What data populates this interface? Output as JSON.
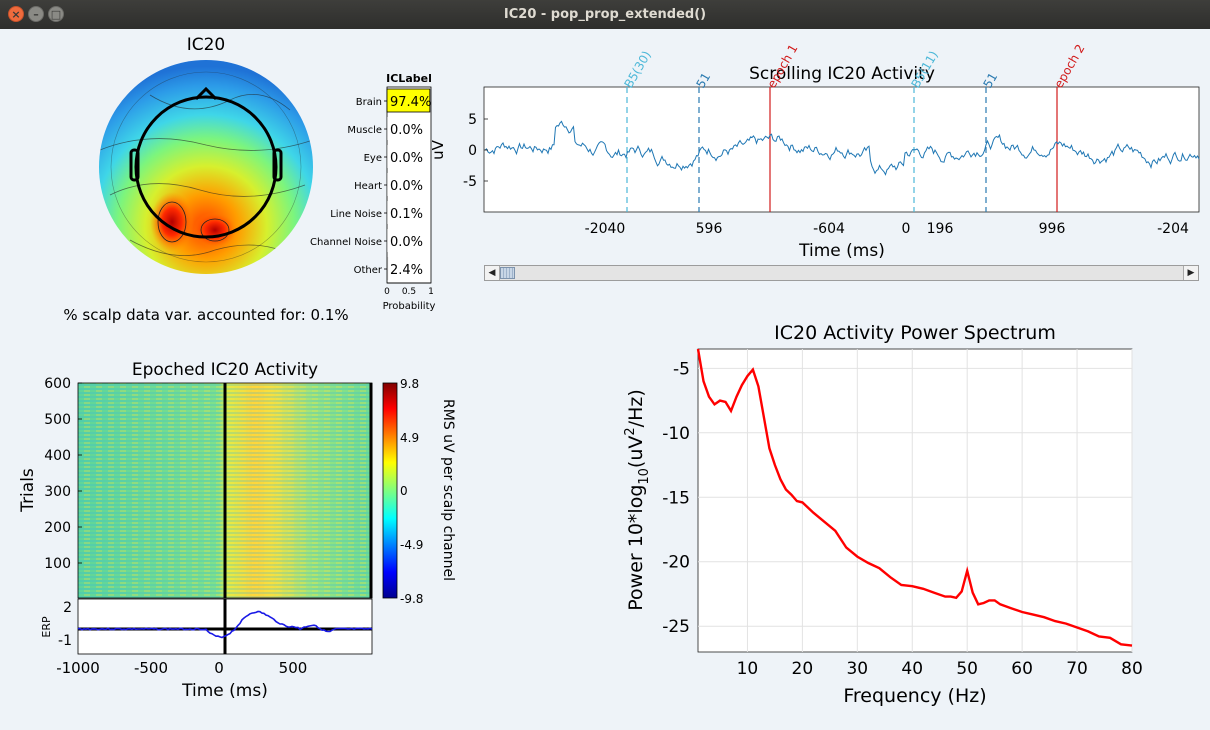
{
  "window": {
    "title": "IC20 - pop_prop_extended()"
  },
  "topo": {
    "title": "IC20",
    "footer": "% scalp data var. accounted for: 0.1%"
  },
  "iclabel": {
    "title": "ICLabel",
    "xlabel": "Probability",
    "ticks": [
      "0",
      "0.5",
      "1"
    ],
    "rows": [
      {
        "label": "Brain",
        "value": "97.4%",
        "prob": 0.974
      },
      {
        "label": "Muscle",
        "value": "0.0%",
        "prob": 0.0
      },
      {
        "label": "Eye",
        "value": "0.0%",
        "prob": 0.0
      },
      {
        "label": "Heart",
        "value": "0.0%",
        "prob": 0.0
      },
      {
        "label": "Line Noise",
        "value": "0.1%",
        "prob": 0.001
      },
      {
        "label": "Channel Noise",
        "value": "0.0%",
        "prob": 0.0
      },
      {
        "label": "Other",
        "value": "2.4%",
        "prob": 0.024
      }
    ],
    "highlight_color": "#ffff00"
  },
  "scroll": {
    "title": "Scrolling IC20 Activity",
    "xlabel": "Time (ms)",
    "ylabel": "uV",
    "yticks": [
      "5",
      "0",
      "-5"
    ],
    "xticks": [
      "-2040",
      "596",
      "-604",
      "0",
      "196",
      "996",
      "-204"
    ],
    "events": [
      {
        "label": "B5(30)",
        "color": "#4db8d8",
        "style": "dashed"
      },
      {
        "label": "51",
        "color": "#2a7ab0",
        "style": "dashed"
      },
      {
        "label": "epoch 1",
        "color": "#d11a1a",
        "style": "solid"
      },
      {
        "label": "B5(11)",
        "color": "#4db8d8",
        "style": "dashed"
      },
      {
        "label": "51",
        "color": "#2a7ab0",
        "style": "dashed"
      },
      {
        "label": "epoch 2",
        "color": "#d11a1a",
        "style": "solid"
      }
    ],
    "line_color": "#1f77b4"
  },
  "scrollbar": {
    "left_arrow": "◀",
    "right_arrow": "▶"
  },
  "epoched": {
    "title": "Epoched IC20 Activity",
    "ylabel": "Trials",
    "yticks": [
      "600",
      "500",
      "400",
      "300",
      "200",
      "100"
    ],
    "erp_label": "ERP",
    "erp_yticks": [
      "2",
      "-1"
    ],
    "xticks": [
      "-1000",
      "-500",
      "0",
      "500"
    ],
    "xlabel": "Time (ms)",
    "colorbar": {
      "ticks": [
        "9.8",
        "4.9",
        "0",
        "-4.9",
        "-9.8"
      ],
      "label": "RMS uV per scalp channel"
    },
    "erp_color": "#1a1ae6"
  },
  "chart_data": {
    "type": "line",
    "title": "IC20 Activity Power Spectrum",
    "xlabel": "Frequency (Hz)",
    "ylabel_main": "Power 10*log",
    "ylabel_sub": "10",
    "ylabel_unit": "(uV",
    "ylabel_sup": "2",
    "ylabel_end": "/Hz)",
    "xlim": [
      1,
      80
    ],
    "ylim": [
      -27,
      -3.5
    ],
    "grid": true,
    "xticks": [
      "10",
      "20",
      "30",
      "40",
      "50",
      "60",
      "70",
      "80"
    ],
    "yticks": [
      "-5",
      "-10",
      "-15",
      "-20",
      "-25"
    ],
    "series": [
      {
        "color": "#ff0000",
        "x": [
          1,
          2,
          3,
          4,
          5,
          6,
          7,
          8,
          9,
          10,
          11,
          12,
          13,
          14,
          15,
          16,
          17,
          18,
          19,
          20,
          22,
          24,
          26,
          28,
          30,
          32,
          34,
          36,
          38,
          40,
          42,
          44,
          46,
          47,
          48,
          49,
          50,
          51,
          52,
          53,
          54,
          55,
          56,
          58,
          60,
          62,
          64,
          66,
          68,
          70,
          72,
          74,
          76,
          78,
          80
        ],
        "y": [
          -3.5,
          -6.0,
          -7.2,
          -7.8,
          -7.5,
          -7.6,
          -8.3,
          -7.2,
          -6.3,
          -5.6,
          -5.1,
          -6.4,
          -8.8,
          -11.2,
          -12.5,
          -13.6,
          -14.4,
          -14.8,
          -15.3,
          -15.4,
          -16.2,
          -16.9,
          -17.6,
          -18.9,
          -19.6,
          -20.1,
          -20.5,
          -21.2,
          -21.8,
          -21.9,
          -22.1,
          -22.4,
          -22.7,
          -22.7,
          -22.8,
          -22.3,
          -20.7,
          -22.4,
          -23.3,
          -23.2,
          -23.0,
          -23.0,
          -23.3,
          -23.6,
          -23.9,
          -24.1,
          -24.3,
          -24.6,
          -24.8,
          -25.1,
          -25.4,
          -25.8,
          -25.9,
          -26.4,
          -26.5
        ]
      }
    ]
  }
}
